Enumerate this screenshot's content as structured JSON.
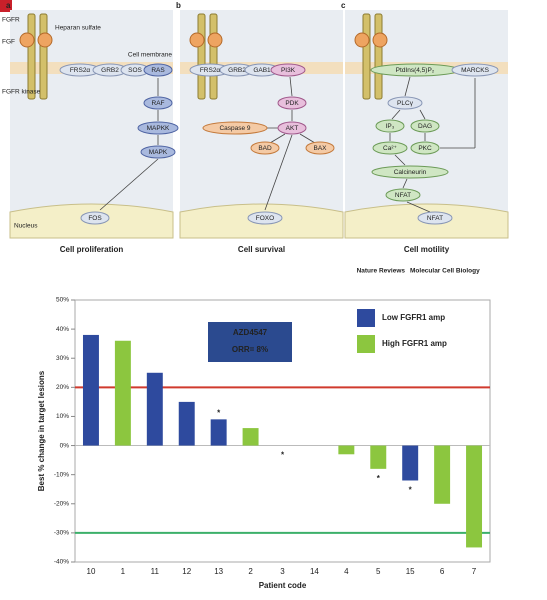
{
  "diagram": {
    "panels": [
      {
        "letter": "a",
        "caption": "Cell proliferation",
        "nodes": [
          "FRS2α",
          "GRB2",
          "SOS",
          "RAS",
          "RAF",
          "MAPKK",
          "MAPK",
          "FOS"
        ]
      },
      {
        "letter": "b",
        "caption": "Cell survival",
        "nodes": [
          "FRS2α",
          "GRB2",
          "GAB1",
          "PI3K",
          "PDK",
          "AKT",
          "Caspase 9",
          "BAD",
          "BAX",
          "FOXO"
        ]
      },
      {
        "letter": "c",
        "caption": "Cell motility",
        "nodes": [
          "PtdIns(4,5)P₂",
          "MARCKS",
          "PLCγ",
          "IP₃",
          "DAG",
          "Ca²⁺",
          "PKC",
          "Calcineurin",
          "NFAT",
          "NFAT"
        ]
      }
    ],
    "labels": {
      "fgfr": "FGFR",
      "fgf": "FGF",
      "heparan": "Heparan sulfate",
      "membrane": "Cell membrane",
      "kinase": "FGFR kinase",
      "nucleus": "Nucleus"
    },
    "credit": {
      "journal": "Nature Reviews",
      "section": "Molecular Cell Biology"
    }
  },
  "chart_data": {
    "type": "bar",
    "categories": [
      "10",
      "1",
      "11",
      "12",
      "13",
      "2",
      "3",
      "14",
      "4",
      "5",
      "15",
      "6",
      "7"
    ],
    "series": [
      {
        "name": "Low FGFR1 amp",
        "color": "#2e4a9e",
        "values": [
          38,
          null,
          25,
          15,
          9,
          null,
          0,
          0,
          null,
          null,
          -12,
          null,
          null
        ]
      },
      {
        "name": "High FGFR1 amp",
        "color": "#8cc63f",
        "values": [
          null,
          36,
          null,
          null,
          null,
          6,
          null,
          null,
          -3,
          -8,
          null,
          -20,
          -35
        ]
      }
    ],
    "ylim": [
      -40,
      50
    ],
    "yticks": [
      {
        "value": -40,
        "label": "-40%"
      },
      {
        "value": -30,
        "label": "-30%"
      },
      {
        "value": -20,
        "label": "-20%"
      },
      {
        "value": -10,
        "label": "-10%"
      },
      {
        "value": 0,
        "label": "0%"
      },
      {
        "value": 10,
        "label": "10%"
      },
      {
        "value": 20,
        "label": "20%"
      },
      {
        "value": 30,
        "label": "30%"
      },
      {
        "value": 40,
        "label": "40%"
      },
      {
        "value": 50,
        "label": "50%"
      }
    ],
    "ylabel": "Best % change in target lesions",
    "xlabel": "Patient code",
    "reference_lines": [
      {
        "value": 20,
        "color": "#d03a2e"
      },
      {
        "value": -30,
        "color": "#3cb06a"
      }
    ],
    "box": [
      "AZD4547",
      "ORR= 8%"
    ],
    "annotations": [
      {
        "text": "*",
        "category": "13"
      },
      {
        "text": "*",
        "category": "3"
      },
      {
        "text": "*",
        "category": "5"
      },
      {
        "text": "*",
        "category": "15"
      }
    ]
  }
}
